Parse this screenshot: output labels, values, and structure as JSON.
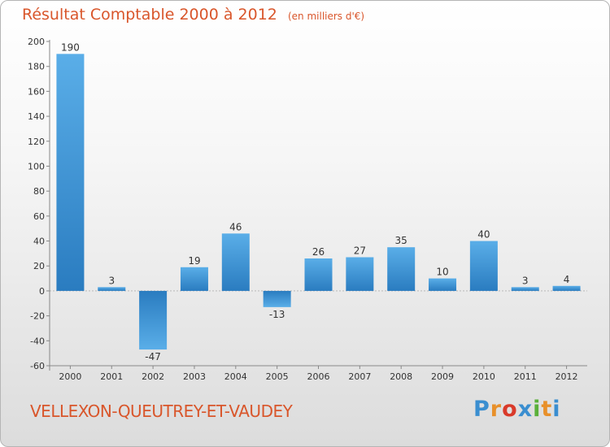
{
  "header": {
    "title": "Résultat Comptable 2000 à 2012",
    "subtitle": "(en milliers d'€)"
  },
  "footer": {
    "location": "VELLEXON-QUEUTREY-ET-VAUDEY",
    "logo_text": "Proxiti"
  },
  "colors": {
    "title": "#d9562b",
    "bar_light": "#5aaee8",
    "bar_dark": "#2a7cc0",
    "logo": [
      "#3a8ed0",
      "#e8902a",
      "#d93a2a",
      "#3a8ed0",
      "#5ab03a",
      "#e8902a",
      "#3a8ed0"
    ]
  },
  "chart_data": {
    "type": "bar",
    "categories": [
      "2000",
      "2001",
      "2002",
      "2003",
      "2004",
      "2005",
      "2006",
      "2007",
      "2008",
      "2009",
      "2010",
      "2011",
      "2012"
    ],
    "values": [
      190,
      3,
      -47,
      19,
      46,
      -13,
      26,
      27,
      35,
      10,
      40,
      3,
      4
    ],
    "ylim": [
      -60,
      200
    ],
    "yticks": [
      200,
      180,
      160,
      140,
      120,
      100,
      80,
      60,
      40,
      20,
      0,
      -20,
      -40,
      -60
    ],
    "grid": false,
    "legend": "none"
  }
}
